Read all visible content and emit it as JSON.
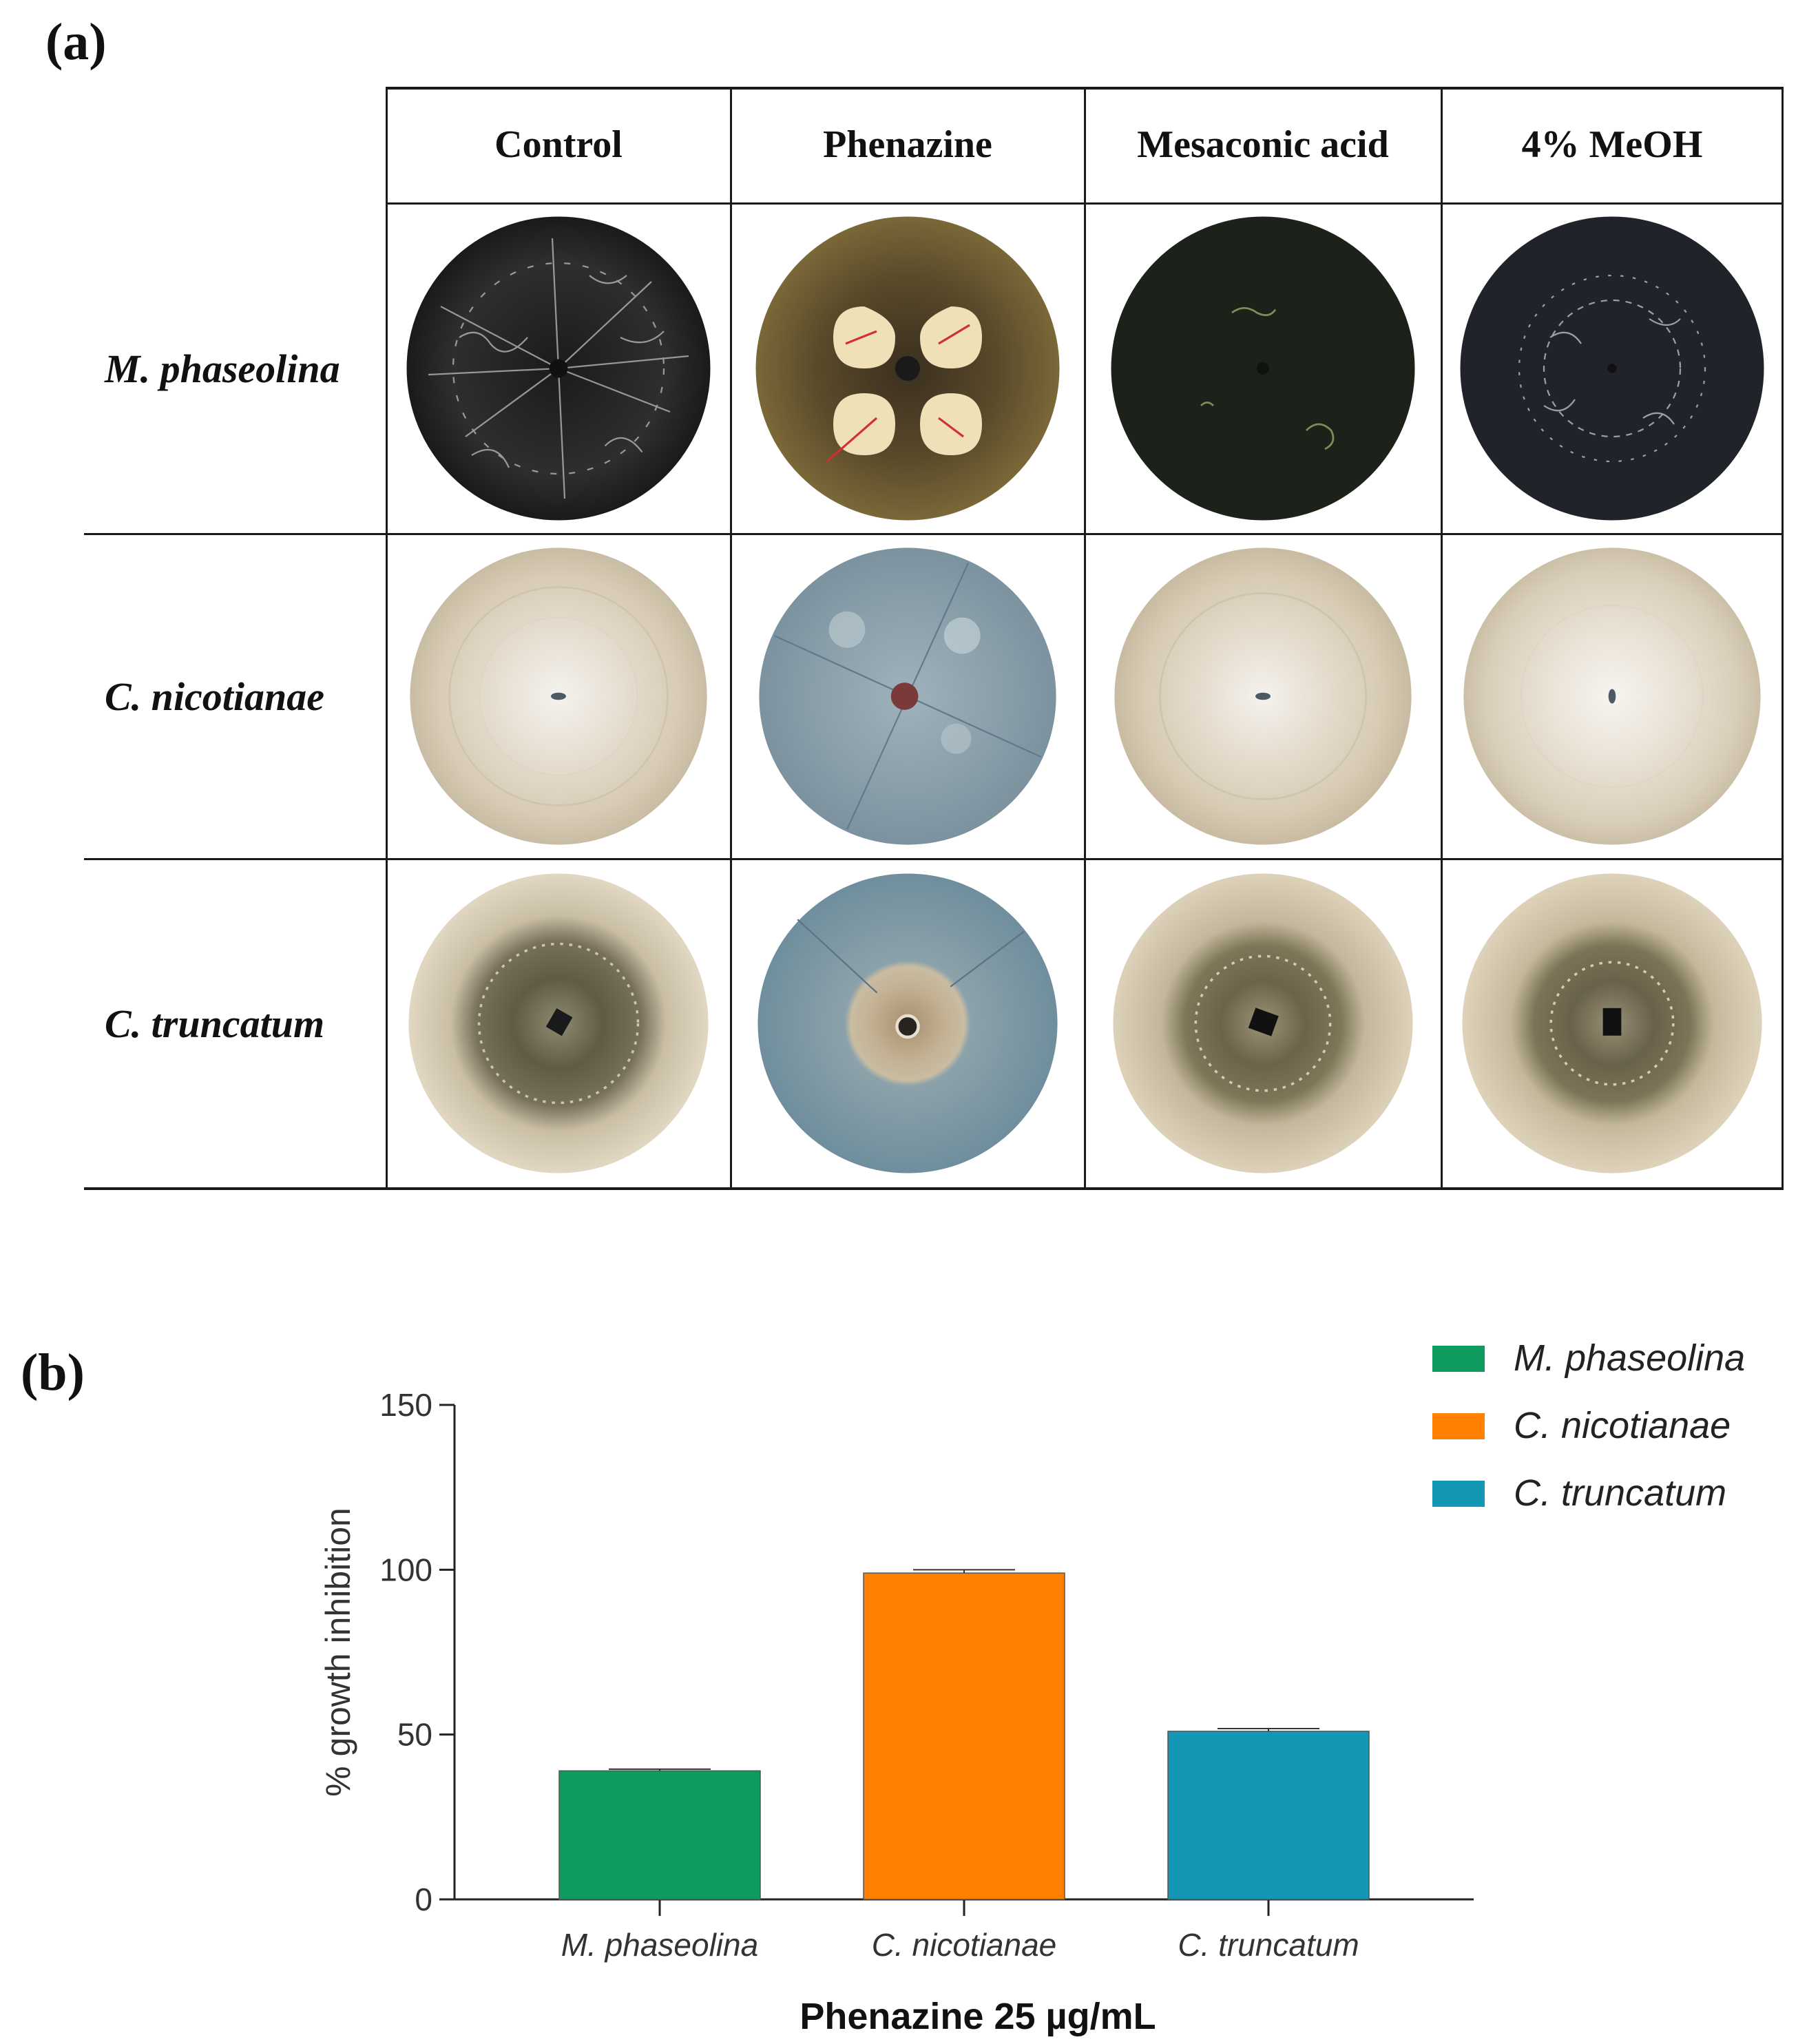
{
  "panel_a": {
    "label": "(a)",
    "columns": [
      "Control",
      "Phenazine",
      "Mesaconic acid",
      "4% MeOH"
    ],
    "rows": [
      "M. phaseolina",
      "C. nicotianae",
      "C. truncatum"
    ],
    "plate_colors": {
      "m_dark": "#2a2a2a",
      "beige": "#dcd1bf",
      "blue_agar": "#8aa1ad",
      "olive": "#6f6a4c"
    }
  },
  "panel_b": {
    "label": "(b)",
    "colors": {
      "M. phaseolina": "#0f9a5e",
      "C. nicotianae": "#ff7f00",
      "C. truncatum": "#1397b5"
    }
  },
  "chart_data": {
    "type": "bar",
    "categories": [
      "M. phaseolina",
      "C. nicotianae",
      "C. truncatum"
    ],
    "values": [
      39,
      99,
      51
    ],
    "errors": [
      0.5,
      1.0,
      0.8
    ],
    "ylabel": "% growth inhibition",
    "xlabel": "Phenazine 25 µg/mL",
    "ylim": [
      0,
      150
    ],
    "yticks": [
      0,
      50,
      100,
      150
    ],
    "legend": {
      "placement": "top-right",
      "entries": [
        "M. phaseolina",
        "C. nicotianae",
        "C. truncatum"
      ]
    },
    "grid": false
  }
}
